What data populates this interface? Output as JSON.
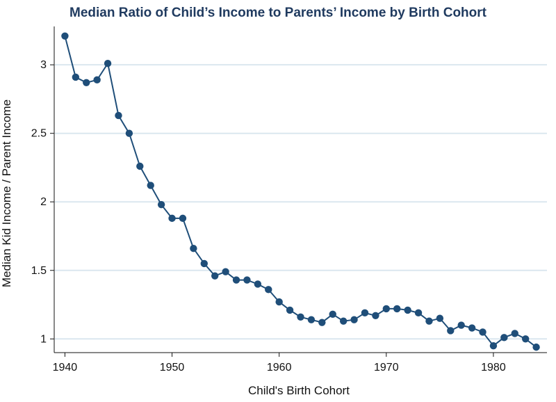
{
  "chart_data": {
    "type": "line",
    "title": "Median Ratio of Child’s Income to Parents’ Income by Birth Cohort",
    "xlabel": "Child's Birth Cohort",
    "ylabel": "Median Kid Income / Parent Income",
    "xlim": [
      1939,
      1985
    ],
    "ylim": [
      0.9,
      3.28
    ],
    "xticks": [
      1940,
      1950,
      1960,
      1970,
      1980
    ],
    "yticks": [
      1,
      1.5,
      2,
      2.5,
      3
    ],
    "grid": "horizontal",
    "legend": "none",
    "colors": {
      "title": "#1f3a5f",
      "series": "#1f4e79",
      "grid": "#dbe7ef",
      "axis": "#111111"
    },
    "series": [
      {
        "x": [
          1940,
          1941,
          1942,
          1943,
          1944,
          1945,
          1946,
          1947,
          1948,
          1949,
          1950,
          1951,
          1952,
          1953,
          1954,
          1955,
          1956,
          1957,
          1958,
          1959,
          1960,
          1961,
          1962,
          1963,
          1964,
          1965,
          1966,
          1967,
          1968,
          1969,
          1970,
          1971,
          1972,
          1973,
          1974,
          1975,
          1976,
          1977,
          1978,
          1979,
          1980,
          1981,
          1982,
          1983,
          1984
        ],
        "y": [
          3.21,
          2.91,
          2.87,
          2.89,
          3.01,
          2.63,
          2.5,
          2.26,
          2.12,
          1.98,
          1.88,
          1.88,
          1.66,
          1.55,
          1.46,
          1.49,
          1.43,
          1.43,
          1.4,
          1.36,
          1.27,
          1.21,
          1.16,
          1.14,
          1.12,
          1.18,
          1.13,
          1.14,
          1.19,
          1.17,
          1.22,
          1.22,
          1.21,
          1.19,
          1.13,
          1.15,
          1.06,
          1.1,
          1.08,
          1.05,
          0.95,
          1.01,
          1.04,
          1.0,
          0.94
        ]
      }
    ]
  }
}
